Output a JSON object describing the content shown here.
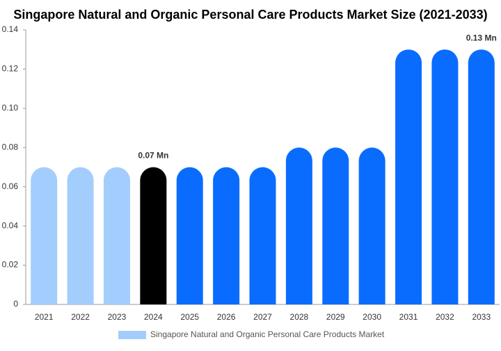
{
  "chart_data": {
    "type": "bar",
    "title": "Singapore Natural and Organic Personal Care Products Market Size (2021-2033)",
    "categories": [
      "2021",
      "2022",
      "2023",
      "2024",
      "2025",
      "2026",
      "2027",
      "2028",
      "2029",
      "2030",
      "2031",
      "2032",
      "2033"
    ],
    "series": [
      {
        "name": "Singapore Natural and Organic Personal Care Products Market",
        "color": "#a3cdfd",
        "values": [
          0.07,
          0.07,
          0.07,
          0.07,
          0.07,
          0.07,
          0.07,
          0.08,
          0.08,
          0.08,
          0.13,
          0.13,
          0.13
        ],
        "value_labels": [
          null,
          null,
          null,
          "0.07 Mn",
          null,
          null,
          null,
          null,
          null,
          null,
          null,
          null,
          "0.13 Mn"
        ],
        "colors": [
          "#a3cdfd",
          "#a3cdfd",
          "#a3cdfd",
          "#000000",
          "#0a6cff",
          "#0a6cff",
          "#0a6cff",
          "#0a6cff",
          "#0a6cff",
          "#0a6cff",
          "#0a6cff",
          "#0a6cff",
          "#0a6cff"
        ]
      }
    ],
    "ylim": [
      0,
      0.14
    ],
    "yticks": [
      0,
      0.02,
      0.04,
      0.06,
      0.08,
      {
        "value": 0.1,
        "label": "0.10"
      },
      0.12,
      0.14
    ],
    "grid": false
  }
}
